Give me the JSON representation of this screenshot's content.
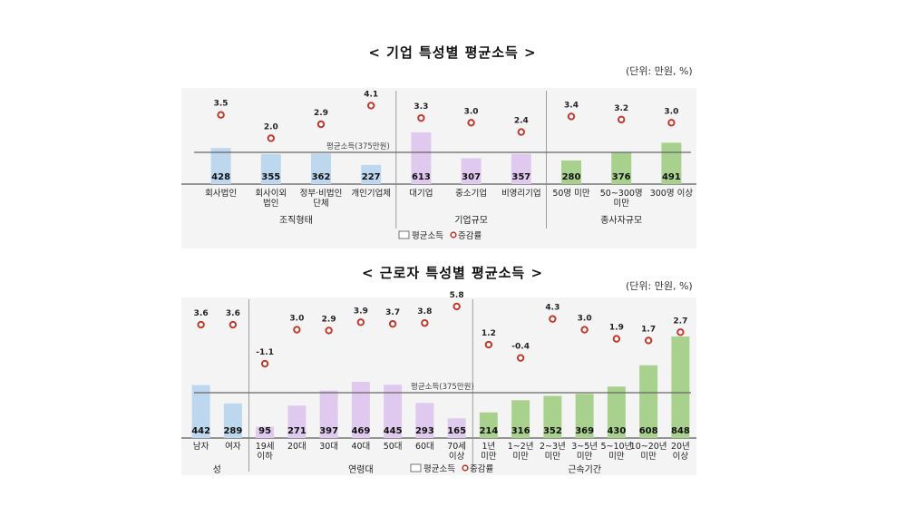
{
  "chart_data": [
    {
      "type": "bar",
      "title": "< 기업 특성별 평균소득 >",
      "unit": "(단위: 만원, %)",
      "reference_label": "평균소득(375만원)",
      "reference_value": 375,
      "legend": {
        "bar": "평균소득",
        "marker": "증감률"
      },
      "groups": [
        {
          "name": "조직형태",
          "color": "#bcd7ee",
          "categories": [
            {
              "label": [
                "회사법인"
              ],
              "value": 428,
              "rate": "3.5"
            },
            {
              "label": [
                "회사이외",
                "법인"
              ],
              "value": 355,
              "rate": "2.0"
            },
            {
              "label": [
                "정부·비법인",
                "단체"
              ],
              "value": 362,
              "rate": "2.9"
            },
            {
              "label": [
                "개인기업체"
              ],
              "value": 227,
              "rate": "4.1"
            }
          ]
        },
        {
          "name": "기업규모",
          "color": "#e0c9ee",
          "categories": [
            {
              "label": [
                "대기업"
              ],
              "value": 613,
              "rate": "3.3"
            },
            {
              "label": [
                "중소기업"
              ],
              "value": 307,
              "rate": "3.0"
            },
            {
              "label": [
                "비영리기업"
              ],
              "value": 357,
              "rate": "2.4"
            }
          ]
        },
        {
          "name": "종사자규모",
          "color": "#a9d18e",
          "categories": [
            {
              "label": [
                "50명 미만"
              ],
              "value": 280,
              "rate": "3.4"
            },
            {
              "label": [
                "50~300명",
                "미만"
              ],
              "value": 376,
              "rate": "3.2"
            },
            {
              "label": [
                "300명 이상"
              ],
              "value": 491,
              "rate": "3.0"
            }
          ]
        }
      ]
    },
    {
      "type": "bar",
      "title": "< 근로자 특성별 평균소득 >",
      "unit": "(단위: 만원, %)",
      "reference_label": "평균소득(375만원)",
      "reference_value": 375,
      "legend": {
        "bar": "평균소득",
        "marker": "증감률"
      },
      "groups": [
        {
          "name": "성",
          "color": "#bcd7ee",
          "categories": [
            {
              "label": [
                "남자"
              ],
              "value": 442,
              "rate": "3.6"
            },
            {
              "label": [
                "여자"
              ],
              "value": 289,
              "rate": "3.6"
            }
          ]
        },
        {
          "name": "연령대",
          "color": "#e0c9ee",
          "categories": [
            {
              "label": [
                "19세",
                "이하"
              ],
              "value": 95,
              "rate": "-1.1"
            },
            {
              "label": [
                "20대"
              ],
              "value": 271,
              "rate": "3.0"
            },
            {
              "label": [
                "30대"
              ],
              "value": 397,
              "rate": "2.9"
            },
            {
              "label": [
                "40대"
              ],
              "value": 469,
              "rate": "3.9"
            },
            {
              "label": [
                "50대"
              ],
              "value": 445,
              "rate": "3.7"
            },
            {
              "label": [
                "60대"
              ],
              "value": 293,
              "rate": "3.8"
            },
            {
              "label": [
                "70세",
                "이상"
              ],
              "value": 165,
              "rate": "5.8"
            }
          ]
        },
        {
          "name": "근속기간",
          "color": "#a9d18e",
          "categories": [
            {
              "label": [
                "1년",
                "미만"
              ],
              "value": 214,
              "rate": "1.2"
            },
            {
              "label": [
                "1~2년",
                "미만"
              ],
              "value": 316,
              "rate": "-0.4"
            },
            {
              "label": [
                "2~3년",
                "미만"
              ],
              "value": 352,
              "rate": "4.3"
            },
            {
              "label": [
                "3~5년",
                "미만"
              ],
              "value": 369,
              "rate": "3.0"
            },
            {
              "label": [
                "5~10년",
                "미만"
              ],
              "value": 430,
              "rate": "1.9"
            },
            {
              "label": [
                "10~20년",
                "미만"
              ],
              "value": 608,
              "rate": "1.7"
            },
            {
              "label": [
                "20년",
                "이상"
              ],
              "value": 848,
              "rate": "2.7"
            }
          ]
        }
      ]
    }
  ]
}
